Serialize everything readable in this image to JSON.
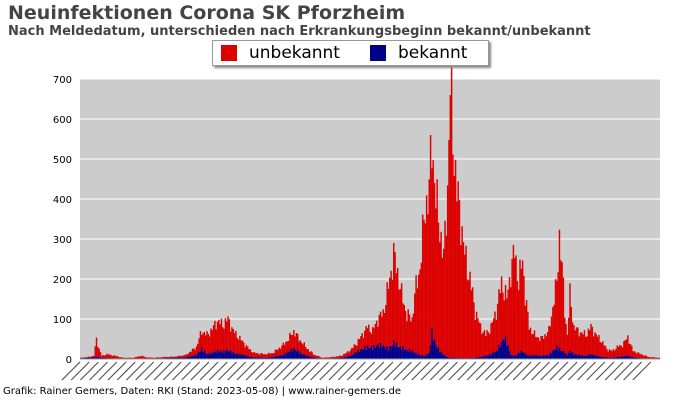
{
  "header": {
    "title": "Neuinfektionen Corona SK Pforzheim",
    "subtitle": "Nach Meldedatum, unterschieden nach Erkrankungsbeginn bekannt/unbekannt"
  },
  "footer": {
    "credit": "Grafik: Rainer Gemers, Daten: RKI (Stand: 2023-05-08) | www.rainer-gemers.de"
  },
  "colors": {
    "unbekannt": "#dd0000",
    "bekannt": "#00008b",
    "plot_bg": "#cccccc",
    "grid": "#ffffff"
  },
  "chart_data": {
    "type": "bar",
    "stacked": true,
    "title": "Neuinfektionen Corona SK Pforzheim",
    "subtitle": "Nach Meldedatum, unterschieden nach Erkrankungsbeginn bekannt/unbekannt",
    "xlabel": "",
    "ylabel": "",
    "ylim": [
      0,
      700
    ],
    "yticks": [
      0,
      100,
      200,
      300,
      400,
      500,
      600,
      700
    ],
    "grid": true,
    "legend_position": "top-center",
    "x_tick_labels_legible": false,
    "series_order": [
      "bekannt",
      "unbekannt"
    ],
    "total_profile": [
      [
        0,
        3
      ],
      [
        6,
        5
      ],
      [
        10,
        8
      ],
      [
        12,
        50
      ],
      [
        14,
        25
      ],
      [
        16,
        8
      ],
      [
        20,
        12
      ],
      [
        26,
        8
      ],
      [
        32,
        3
      ],
      [
        40,
        3
      ],
      [
        46,
        8
      ],
      [
        50,
        4
      ],
      [
        56,
        3
      ],
      [
        64,
        5
      ],
      [
        72,
        6
      ],
      [
        80,
        10
      ],
      [
        88,
        30
      ],
      [
        92,
        70
      ],
      [
        96,
        60
      ],
      [
        100,
        75
      ],
      [
        104,
        95
      ],
      [
        108,
        85
      ],
      [
        112,
        100
      ],
      [
        116,
        70
      ],
      [
        120,
        55
      ],
      [
        124,
        40
      ],
      [
        128,
        25
      ],
      [
        132,
        15
      ],
      [
        140,
        12
      ],
      [
        146,
        15
      ],
      [
        150,
        25
      ],
      [
        154,
        35
      ],
      [
        158,
        50
      ],
      [
        162,
        70
      ],
      [
        166,
        50
      ],
      [
        170,
        35
      ],
      [
        174,
        20
      ],
      [
        178,
        10
      ],
      [
        184,
        3
      ],
      [
        192,
        5
      ],
      [
        198,
        8
      ],
      [
        202,
        15
      ],
      [
        206,
        25
      ],
      [
        210,
        40
      ],
      [
        214,
        60
      ],
      [
        218,
        80
      ],
      [
        222,
        70
      ],
      [
        226,
        100
      ],
      [
        230,
        115
      ],
      [
        234,
        180
      ],
      [
        238,
        260
      ],
      [
        242,
        200
      ],
      [
        244,
        160
      ],
      [
        248,
        110
      ],
      [
        252,
        100
      ],
      [
        254,
        160
      ],
      [
        258,
        230
      ],
      [
        262,
        380
      ],
      [
        265,
        420
      ],
      [
        267,
        550
      ],
      [
        270,
        400
      ],
      [
        273,
        330
      ],
      [
        276,
        250
      ],
      [
        279,
        430
      ],
      [
        281,
        675
      ],
      [
        283,
        560
      ],
      [
        286,
        420
      ],
      [
        289,
        350
      ],
      [
        292,
        260
      ],
      [
        296,
        200
      ],
      [
        300,
        120
      ],
      [
        304,
        80
      ],
      [
        308,
        60
      ],
      [
        312,
        80
      ],
      [
        316,
        120
      ],
      [
        320,
        190
      ],
      [
        324,
        150
      ],
      [
        327,
        220
      ],
      [
        330,
        270
      ],
      [
        333,
        190
      ],
      [
        336,
        250
      ],
      [
        338,
        160
      ],
      [
        341,
        80
      ],
      [
        345,
        60
      ],
      [
        350,
        50
      ],
      [
        356,
        70
      ],
      [
        362,
        190
      ],
      [
        364,
        310
      ],
      [
        366,
        230
      ],
      [
        368,
        120
      ],
      [
        370,
        60
      ],
      [
        372,
        160
      ],
      [
        375,
        80
      ],
      [
        378,
        70
      ],
      [
        384,
        60
      ],
      [
        388,
        80
      ],
      [
        392,
        60
      ],
      [
        396,
        45
      ],
      [
        400,
        25
      ],
      [
        404,
        20
      ],
      [
        408,
        30
      ],
      [
        412,
        35
      ],
      [
        416,
        55
      ],
      [
        420,
        20
      ],
      [
        426,
        12
      ],
      [
        432,
        5
      ],
      [
        440,
        3
      ]
    ],
    "known_profile": [
      [
        0,
        2
      ],
      [
        6,
        3
      ],
      [
        10,
        4
      ],
      [
        12,
        5
      ],
      [
        16,
        3
      ],
      [
        32,
        1
      ],
      [
        40,
        1
      ],
      [
        64,
        2
      ],
      [
        80,
        4
      ],
      [
        88,
        10
      ],
      [
        92,
        25
      ],
      [
        96,
        12
      ],
      [
        100,
        15
      ],
      [
        104,
        20
      ],
      [
        108,
        18
      ],
      [
        112,
        22
      ],
      [
        116,
        15
      ],
      [
        120,
        12
      ],
      [
        124,
        10
      ],
      [
        128,
        6
      ],
      [
        132,
        4
      ],
      [
        140,
        3
      ],
      [
        146,
        5
      ],
      [
        150,
        8
      ],
      [
        154,
        10
      ],
      [
        158,
        18
      ],
      [
        162,
        25
      ],
      [
        166,
        18
      ],
      [
        170,
        10
      ],
      [
        174,
        6
      ],
      [
        178,
        3
      ],
      [
        184,
        1
      ],
      [
        192,
        2
      ],
      [
        198,
        3
      ],
      [
        202,
        5
      ],
      [
        206,
        10
      ],
      [
        210,
        18
      ],
      [
        214,
        25
      ],
      [
        218,
        30
      ],
      [
        222,
        28
      ],
      [
        226,
        35
      ],
      [
        230,
        32
      ],
      [
        234,
        25
      ],
      [
        238,
        40
      ],
      [
        242,
        30
      ],
      [
        244,
        28
      ],
      [
        248,
        22
      ],
      [
        252,
        20
      ],
      [
        254,
        15
      ],
      [
        258,
        10
      ],
      [
        262,
        8
      ],
      [
        265,
        15
      ],
      [
        267,
        65
      ],
      [
        270,
        35
      ],
      [
        273,
        20
      ],
      [
        276,
        10
      ],
      [
        279,
        5
      ],
      [
        281,
        3
      ],
      [
        286,
        3
      ],
      [
        292,
        2
      ],
      [
        300,
        3
      ],
      [
        304,
        5
      ],
      [
        308,
        8
      ],
      [
        312,
        12
      ],
      [
        316,
        20
      ],
      [
        320,
        40
      ],
      [
        322,
        55
      ],
      [
        324,
        40
      ],
      [
        327,
        10
      ],
      [
        330,
        8
      ],
      [
        333,
        15
      ],
      [
        336,
        20
      ],
      [
        338,
        12
      ],
      [
        341,
        8
      ],
      [
        345,
        10
      ],
      [
        350,
        8
      ],
      [
        356,
        10
      ],
      [
        362,
        30
      ],
      [
        364,
        25
      ],
      [
        366,
        20
      ],
      [
        368,
        15
      ],
      [
        370,
        10
      ],
      [
        372,
        20
      ],
      [
        375,
        12
      ],
      [
        378,
        10
      ],
      [
        384,
        8
      ],
      [
        388,
        12
      ],
      [
        392,
        8
      ],
      [
        396,
        5
      ],
      [
        400,
        4
      ],
      [
        404,
        3
      ],
      [
        408,
        5
      ],
      [
        412,
        6
      ],
      [
        416,
        8
      ],
      [
        420,
        4
      ],
      [
        426,
        2
      ],
      [
        432,
        1
      ],
      [
        440,
        1
      ]
    ]
  }
}
